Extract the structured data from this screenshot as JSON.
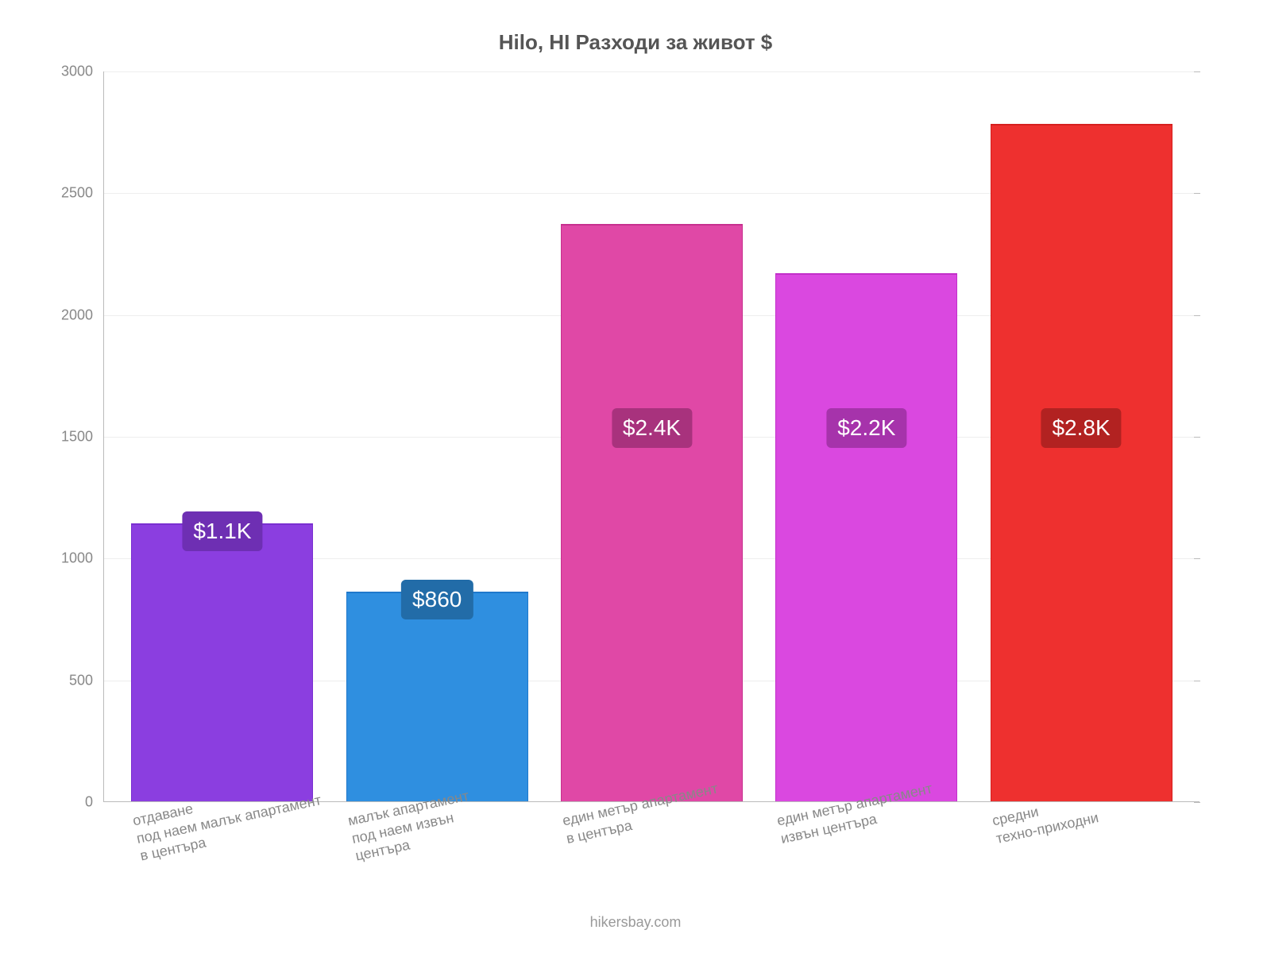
{
  "chart": {
    "type": "bar",
    "title": "Hilo, HI Разходи за живот $",
    "title_fontsize": 26,
    "title_color": "#555555",
    "background_color": "#ffffff",
    "footer": "hikersbay.com",
    "footer_fontsize": 18,
    "footer_color": "#999999",
    "ylim": [
      0,
      3000
    ],
    "ytick_step": 500,
    "yticks": [
      "0",
      "500",
      "1000",
      "1500",
      "2000",
      "2500",
      "3000"
    ],
    "tick_fontsize": 18,
    "tick_color": "#888888",
    "grid_color": "#eeeeee",
    "axis_color": "#bbbbbb",
    "bar_width_pct": 16.6,
    "gap_pct": 3.0,
    "bar_value_fontsize": 28,
    "categories": [
      {
        "label_lines": [
          "отдаване",
          "под наем малък апартамент",
          "в центъра"
        ],
        "value": 1140,
        "value_label": "$1.1K",
        "fill_color": "#8b3ee0",
        "border_color": "#7a2fd0",
        "label_bg": "#6e2fb3"
      },
      {
        "label_lines": [
          "малък апартамент",
          "под наем извън",
          "центъра"
        ],
        "value": 860,
        "value_label": "$860",
        "fill_color": "#2f8fe0",
        "border_color": "#1f78cc",
        "label_bg": "#226ca8"
      },
      {
        "label_lines": [
          "един метър апартамент",
          "в центъра"
        ],
        "value": 2370,
        "value_label": "$2.4K",
        "fill_color": "#e048a6",
        "border_color": "#c72f8e",
        "label_bg": "#a8327d"
      },
      {
        "label_lines": [
          "един метър апартамент",
          "извън центъра"
        ],
        "value": 2170,
        "value_label": "$2.2K",
        "fill_color": "#da48e0",
        "border_color": "#c22fc9",
        "label_bg": "#a633ab"
      },
      {
        "label_lines": [
          "средни",
          "техно-приходни"
        ],
        "value": 2780,
        "value_label": "$2.8K",
        "fill_color": "#ee302f",
        "border_color": "#d61f1e",
        "label_bg": "#b22221"
      }
    ],
    "x_label_fontsize": 18,
    "x_label_rotate_deg": 12,
    "value_label_y_offset_from_bottom": 420
  }
}
